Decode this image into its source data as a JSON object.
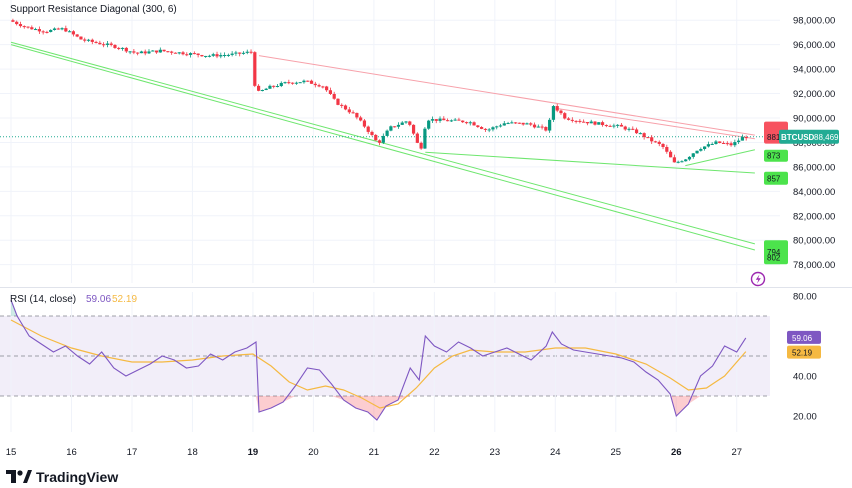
{
  "chart_data": [
    {
      "type": "candlestick",
      "title": "Support Resistance Diagonal (300, 6)",
      "symbol": "BTCUSD",
      "last_price": 88469.27,
      "last_price_label": "88,469.27",
      "ylim": [
        76500,
        99000
      ],
      "y_ticks": [
        "98,000.00",
        "96,000.00",
        "94,000.00",
        "92,000.00",
        "90,000.00",
        "88,000.00",
        "86,000.00",
        "84,000.00",
        "82,000.00",
        "80,000.00",
        "78,000.00"
      ],
      "y_tick_values": [
        98000,
        96000,
        94000,
        92000,
        90000,
        88000,
        86000,
        84000,
        82000,
        80000,
        78000
      ],
      "x_ticks": [
        "15",
        "16",
        "17",
        "18",
        "19",
        "20",
        "21",
        "22",
        "23",
        "24",
        "25",
        "26",
        "27"
      ],
      "x_tick_values": [
        15,
        16,
        17,
        18,
        19,
        20,
        21,
        22,
        23,
        24,
        25,
        26,
        27
      ],
      "xlim": [
        14.95,
        27.55
      ],
      "price_path": [
        [
          15.0,
          98000
        ],
        [
          15.3,
          97400
        ],
        [
          15.6,
          97100
        ],
        [
          15.9,
          97300
        ],
        [
          16.2,
          96400
        ],
        [
          16.5,
          96100
        ],
        [
          16.8,
          95800
        ],
        [
          17.1,
          95300
        ],
        [
          17.5,
          95500
        ],
        [
          17.9,
          95300
        ],
        [
          18.3,
          95100
        ],
        [
          18.7,
          95200
        ],
        [
          19.0,
          95400
        ],
        [
          19.08,
          92000
        ],
        [
          19.3,
          92500
        ],
        [
          19.6,
          92900
        ],
        [
          19.9,
          93000
        ],
        [
          20.2,
          92600
        ],
        [
          20.4,
          91300
        ],
        [
          20.7,
          90300
        ],
        [
          20.9,
          89200
        ],
        [
          21.1,
          87900
        ],
        [
          21.3,
          89200
        ],
        [
          21.6,
          89800
        ],
        [
          21.8,
          87300
        ],
        [
          21.9,
          89900
        ],
        [
          22.2,
          89800
        ],
        [
          22.6,
          89700
        ],
        [
          22.9,
          89000
        ],
        [
          23.2,
          89600
        ],
        [
          23.6,
          89500
        ],
        [
          23.9,
          89000
        ],
        [
          24.0,
          91000
        ],
        [
          24.2,
          90000
        ],
        [
          24.5,
          89700
        ],
        [
          24.8,
          89500
        ],
        [
          25.1,
          89300
        ],
        [
          25.4,
          88800
        ],
        [
          25.6,
          88200
        ],
        [
          25.8,
          87700
        ],
        [
          26.0,
          86300
        ],
        [
          26.2,
          86700
        ],
        [
          26.4,
          87500
        ],
        [
          26.7,
          88000
        ],
        [
          26.95,
          87800
        ],
        [
          27.15,
          88469
        ]
      ],
      "resistance_lines": [
        {
          "x": [
            19.1,
            27.3
          ],
          "y": [
            95100,
            88600
          ]
        },
        {
          "x": [
            24.0,
            27.3
          ],
          "y": [
            90800,
            88300
          ]
        }
      ],
      "support_lines": [
        {
          "x": [
            15.0,
            27.3
          ],
          "y": [
            96200,
            79700
          ]
        },
        {
          "x": [
            15.0,
            27.3
          ],
          "y": [
            96000,
            79200
          ]
        },
        {
          "x": [
            21.85,
            27.3
          ],
          "y": [
            87200,
            85500
          ]
        },
        {
          "x": [
            26.15,
            27.3
          ],
          "y": [
            86100,
            87400
          ]
        }
      ],
      "resistance_labels": [
        "881",
        "88"
      ],
      "support_labels": [
        "873",
        "857",
        "802",
        "794"
      ],
      "resistance_color": "#f23645",
      "support_color": "#22ab94",
      "label_colors": {
        "resistance": "#f7525f",
        "support": "#4ce34c",
        "price": "#22ab94"
      }
    },
    {
      "type": "line",
      "title": "RSI (14, close)",
      "series": [
        {
          "name": "59.06",
          "values_label": "59.06",
          "color": "#7e57c2"
        },
        {
          "name": "52.19",
          "values_label": "52.19",
          "color": "#f5b942"
        }
      ],
      "ylim": [
        12,
        82
      ],
      "y_ticks": [
        "80.00",
        "60.00",
        "40.00",
        "20.00"
      ],
      "y_tick_values": [
        80,
        60,
        40,
        20
      ],
      "bands": {
        "upper": 70,
        "middle": 50,
        "lower": 30
      },
      "rsi_path": [
        [
          15.0,
          78
        ],
        [
          15.1,
          70
        ],
        [
          15.3,
          60
        ],
        [
          15.5,
          56
        ],
        [
          15.7,
          52
        ],
        [
          15.9,
          55
        ],
        [
          16.1,
          50
        ],
        [
          16.3,
          46
        ],
        [
          16.5,
          52
        ],
        [
          16.7,
          44
        ],
        [
          16.9,
          40
        ],
        [
          17.1,
          43
        ],
        [
          17.3,
          46
        ],
        [
          17.5,
          50
        ],
        [
          17.7,
          48
        ],
        [
          17.9,
          44
        ],
        [
          18.1,
          45
        ],
        [
          18.3,
          51
        ],
        [
          18.5,
          48
        ],
        [
          18.7,
          52
        ],
        [
          18.9,
          54
        ],
        [
          19.05,
          57
        ],
        [
          19.1,
          22
        ],
        [
          19.3,
          24
        ],
        [
          19.5,
          27
        ],
        [
          19.7,
          35
        ],
        [
          19.9,
          44
        ],
        [
          20.1,
          43
        ],
        [
          20.3,
          36
        ],
        [
          20.5,
          28
        ],
        [
          20.7,
          24
        ],
        [
          20.9,
          22
        ],
        [
          21.05,
          18
        ],
        [
          21.2,
          25
        ],
        [
          21.4,
          28
        ],
        [
          21.6,
          44
        ],
        [
          21.75,
          38
        ],
        [
          21.85,
          60
        ],
        [
          22.0,
          55
        ],
        [
          22.2,
          52
        ],
        [
          22.4,
          57
        ],
        [
          22.6,
          54
        ],
        [
          22.8,
          50
        ],
        [
          23.0,
          52
        ],
        [
          23.2,
          54
        ],
        [
          23.4,
          51
        ],
        [
          23.6,
          48
        ],
        [
          23.85,
          55
        ],
        [
          23.95,
          62
        ],
        [
          24.1,
          56
        ],
        [
          24.3,
          53
        ],
        [
          24.5,
          52
        ],
        [
          24.7,
          51
        ],
        [
          24.9,
          50
        ],
        [
          25.1,
          49
        ],
        [
          25.3,
          47
        ],
        [
          25.5,
          42
        ],
        [
          25.7,
          38
        ],
        [
          25.9,
          31
        ],
        [
          26.0,
          20
        ],
        [
          26.2,
          26
        ],
        [
          26.4,
          40
        ],
        [
          26.6,
          45
        ],
        [
          26.8,
          55
        ],
        [
          27.0,
          52
        ],
        [
          27.15,
          59.06
        ]
      ],
      "rsi_ma_path": [
        [
          15.0,
          68
        ],
        [
          15.5,
          60
        ],
        [
          16.0,
          54
        ],
        [
          16.5,
          50
        ],
        [
          17.0,
          47
        ],
        [
          17.5,
          47
        ],
        [
          18.0,
          48
        ],
        [
          18.5,
          50
        ],
        [
          19.0,
          51
        ],
        [
          19.3,
          45
        ],
        [
          19.6,
          37
        ],
        [
          19.9,
          33
        ],
        [
          20.2,
          35
        ],
        [
          20.5,
          33
        ],
        [
          20.8,
          29
        ],
        [
          21.1,
          24
        ],
        [
          21.4,
          26
        ],
        [
          21.7,
          34
        ],
        [
          22.0,
          44
        ],
        [
          22.3,
          50
        ],
        [
          22.6,
          53
        ],
        [
          23.0,
          52
        ],
        [
          23.5,
          52
        ],
        [
          24.0,
          54
        ],
        [
          24.5,
          54
        ],
        [
          25.0,
          51
        ],
        [
          25.5,
          46
        ],
        [
          25.9,
          39
        ],
        [
          26.2,
          33
        ],
        [
          26.5,
          34
        ],
        [
          26.8,
          40
        ],
        [
          27.15,
          52.19
        ]
      ]
    }
  ],
  "branding": {
    "name": "TradingView"
  },
  "icons": {
    "alert": "lightning-icon",
    "logo": "tradingview-logo-icon"
  }
}
